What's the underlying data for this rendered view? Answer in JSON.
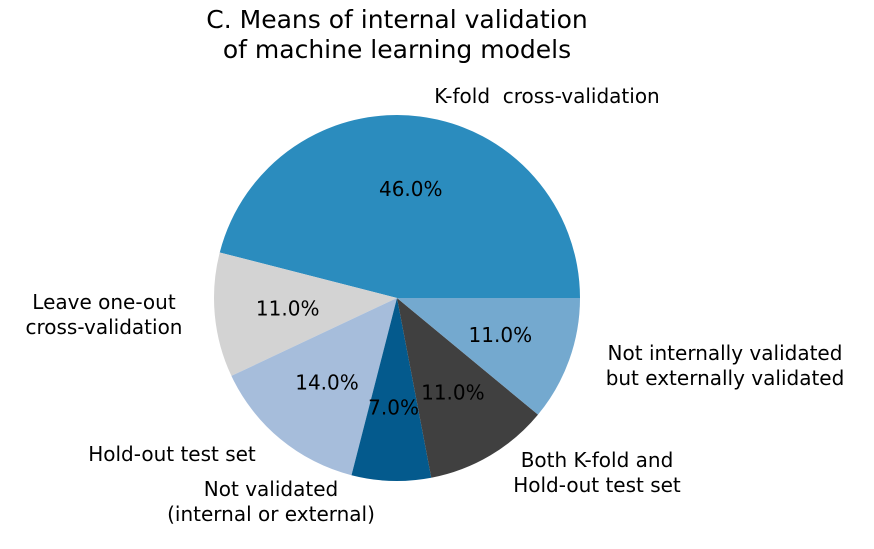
{
  "chart_data": {
    "type": "pie",
    "title_lines": [
      "C. Means of internal validation",
      "of machine learning models"
    ],
    "slices": [
      {
        "label_lines": [
          "K-fold  cross-validation"
        ],
        "value": 46.0,
        "pct_label": "46.0%",
        "color": "#2b8cbe"
      },
      {
        "label_lines": [
          "Leave one-out",
          "cross-validation"
        ],
        "value": 11.0,
        "pct_label": "11.0%",
        "color": "#d3d3d3"
      },
      {
        "label_lines": [
          "Hold-out test set"
        ],
        "value": 14.0,
        "pct_label": "14.0%",
        "color": "#a6bddb"
      },
      {
        "label_lines": [
          "Not validated",
          "(internal or external)"
        ],
        "value": 7.0,
        "pct_label": "7.0%",
        "color": "#045a8d"
      },
      {
        "label_lines": [
          "Both K-fold and",
          "Hold-out test set"
        ],
        "value": 11.0,
        "pct_label": "11.0%",
        "color": "#404040"
      },
      {
        "label_lines": [
          "Not internally validated",
          "but externally validated"
        ],
        "value": 11.0,
        "pct_label": "11.0%",
        "color": "#74a9cf"
      }
    ],
    "start_angle_deg": 0,
    "direction": "counterclockwise"
  }
}
